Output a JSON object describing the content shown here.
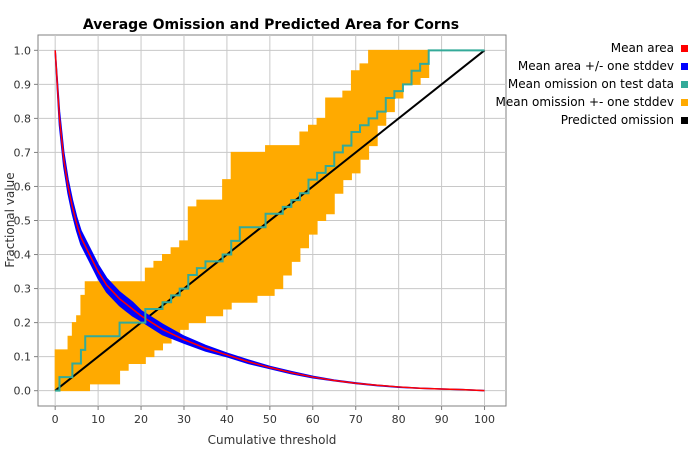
{
  "chart_data": {
    "type": "line",
    "title": "Average Omission and Predicted Area for Corns",
    "xlabel": "Cumulative threshold",
    "ylabel": "Fractional value",
    "xlim": [
      -4,
      105
    ],
    "ylim": [
      -0.045,
      1.045
    ],
    "xticks": [
      0,
      10,
      20,
      30,
      40,
      50,
      60,
      70,
      80,
      90,
      100
    ],
    "yticks": [
      0.0,
      0.1,
      0.2,
      0.3,
      0.4,
      0.5,
      0.6,
      0.7,
      0.8,
      0.9,
      1.0
    ],
    "xtick_labels": [
      "0",
      "10",
      "20",
      "30",
      "40",
      "50",
      "60",
      "70",
      "80",
      "90",
      "100"
    ],
    "ytick_labels": [
      "0.0",
      "0.1",
      "0.2",
      "0.3",
      "0.4",
      "0.5",
      "0.6",
      "0.7",
      "0.8",
      "0.9",
      "1.0"
    ],
    "grid": true,
    "legend_position": "right",
    "series": [
      {
        "name": "Mean area",
        "color": "#ff0000",
        "x": [
          0,
          1,
          2,
          3,
          4,
          5,
          6,
          8,
          10,
          12,
          15,
          18,
          20,
          25,
          30,
          35,
          40,
          45,
          50,
          55,
          60,
          65,
          70,
          75,
          80,
          85,
          90,
          95,
          100
        ],
        "y": [
          1.0,
          0.8,
          0.68,
          0.6,
          0.54,
          0.49,
          0.45,
          0.4,
          0.35,
          0.31,
          0.27,
          0.24,
          0.22,
          0.18,
          0.15,
          0.125,
          0.105,
          0.085,
          0.068,
          0.053,
          0.04,
          0.03,
          0.022,
          0.016,
          0.011,
          0.007,
          0.005,
          0.003,
          0.0
        ]
      },
      {
        "name": "Mean area +/- one stddev",
        "color": "#0000ff",
        "x": [
          0,
          1,
          2,
          3,
          4,
          5,
          6,
          8,
          10,
          12,
          15,
          18,
          20,
          25,
          30,
          35,
          40,
          45,
          50,
          55,
          60,
          65,
          70,
          75,
          80,
          85,
          90,
          95,
          100
        ],
        "upper": [
          1.0,
          0.82,
          0.7,
          0.62,
          0.56,
          0.51,
          0.47,
          0.42,
          0.37,
          0.33,
          0.29,
          0.26,
          0.235,
          0.195,
          0.16,
          0.133,
          0.11,
          0.09,
          0.071,
          0.056,
          0.042,
          0.031,
          0.023,
          0.016,
          0.011,
          0.007,
          0.005,
          0.003,
          0.0
        ],
        "lower": [
          1.0,
          0.78,
          0.66,
          0.58,
          0.52,
          0.47,
          0.43,
          0.38,
          0.33,
          0.29,
          0.25,
          0.22,
          0.205,
          0.165,
          0.14,
          0.117,
          0.1,
          0.08,
          0.065,
          0.05,
          0.038,
          0.029,
          0.021,
          0.015,
          0.01,
          0.007,
          0.005,
          0.003,
          0.0
        ]
      },
      {
        "name": "Mean omission on test data",
        "color": "#33aa99",
        "x": [
          0,
          1,
          2,
          3,
          4,
          5,
          6,
          7,
          8,
          9,
          11,
          13,
          15,
          17,
          19,
          21,
          23,
          25,
          27,
          29,
          31,
          33,
          35,
          37,
          39,
          41,
          43,
          45,
          47,
          49,
          51,
          53,
          55,
          57,
          59,
          61,
          63,
          65,
          67,
          69,
          71,
          73,
          75,
          77,
          79,
          81,
          83,
          85,
          87,
          90,
          100
        ],
        "y": [
          0.0,
          0.04,
          0.04,
          0.04,
          0.08,
          0.08,
          0.12,
          0.16,
          0.16,
          0.16,
          0.16,
          0.16,
          0.2,
          0.2,
          0.2,
          0.24,
          0.24,
          0.26,
          0.28,
          0.3,
          0.34,
          0.36,
          0.38,
          0.38,
          0.4,
          0.44,
          0.48,
          0.48,
          0.48,
          0.52,
          0.52,
          0.54,
          0.56,
          0.58,
          0.62,
          0.64,
          0.66,
          0.7,
          0.72,
          0.76,
          0.78,
          0.8,
          0.82,
          0.86,
          0.88,
          0.9,
          0.94,
          0.96,
          1.0,
          1.0,
          1.0
        ]
      },
      {
        "name": "Mean omission +- one stddev",
        "color": "#ffaa00",
        "x": [
          0,
          1,
          2,
          3,
          4,
          5,
          6,
          7,
          8,
          9,
          11,
          13,
          15,
          17,
          19,
          21,
          23,
          25,
          27,
          29,
          31,
          33,
          35,
          37,
          39,
          41,
          43,
          45,
          47,
          49,
          51,
          53,
          55,
          57,
          59,
          61,
          63,
          65,
          67,
          69,
          71,
          73,
          75,
          77,
          79,
          81,
          83,
          85,
          87,
          90,
          100
        ],
        "upper": [
          0.12,
          0.12,
          0.12,
          0.16,
          0.2,
          0.22,
          0.28,
          0.32,
          0.32,
          0.32,
          0.32,
          0.32,
          0.32,
          0.32,
          0.32,
          0.36,
          0.38,
          0.4,
          0.42,
          0.44,
          0.54,
          0.56,
          0.56,
          0.56,
          0.62,
          0.7,
          0.7,
          0.7,
          0.7,
          0.72,
          0.72,
          0.72,
          0.72,
          0.76,
          0.78,
          0.8,
          0.86,
          0.86,
          0.88,
          0.94,
          0.96,
          1.0,
          1.0,
          1.0,
          1.0,
          1.0,
          1.0,
          1.0,
          1.0,
          1.0,
          1.0
        ],
        "lower": [
          0.0,
          0.0,
          0.0,
          0.0,
          0.0,
          0.0,
          0.0,
          0.0,
          0.02,
          0.02,
          0.02,
          0.02,
          0.06,
          0.08,
          0.08,
          0.1,
          0.12,
          0.14,
          0.16,
          0.18,
          0.2,
          0.2,
          0.22,
          0.22,
          0.24,
          0.26,
          0.26,
          0.26,
          0.28,
          0.28,
          0.3,
          0.34,
          0.38,
          0.42,
          0.46,
          0.5,
          0.52,
          0.58,
          0.62,
          0.64,
          0.68,
          0.72,
          0.78,
          0.82,
          0.86,
          0.9,
          0.9,
          0.92,
          1.0,
          1.0,
          1.0
        ]
      },
      {
        "name": "Predicted omission",
        "color": "#000000",
        "x": [
          0,
          100
        ],
        "y": [
          0.0,
          1.0
        ]
      }
    ]
  }
}
